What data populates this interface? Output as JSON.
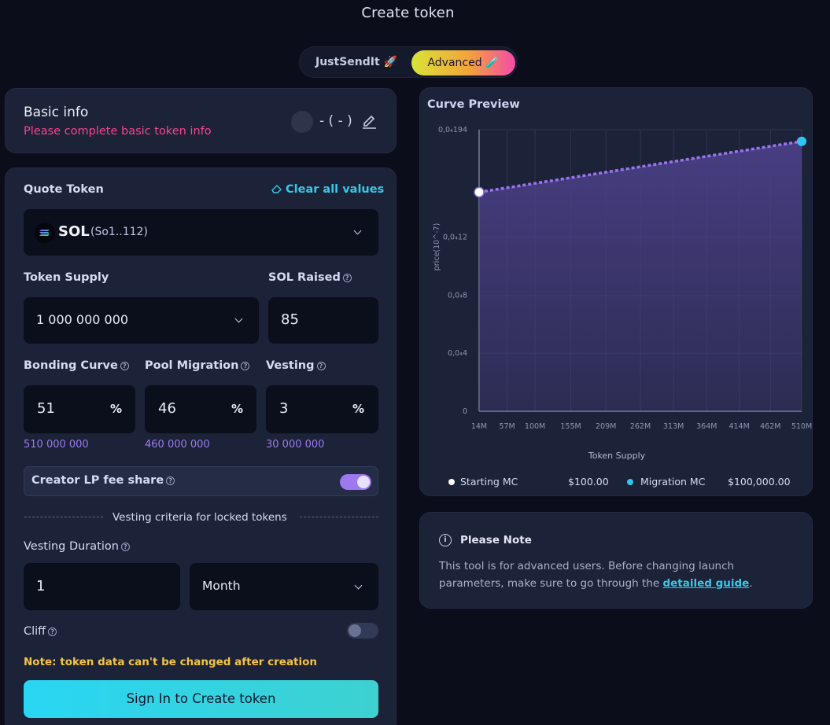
{
  "page": {
    "title": "Create token"
  },
  "mode_toggle": {
    "justsend_label": "JustSendIt 🚀",
    "advanced_label": "Advanced 🧪"
  },
  "basic_info": {
    "title": "Basic info",
    "warning": "Please complete basic token info",
    "ticker_placeholder": "- ( - )"
  },
  "form": {
    "quote_token_label": "Quote Token",
    "clear_all_label": "Clear all values",
    "quote_token": {
      "symbol": "SOL",
      "address": "(So1..112)"
    },
    "token_supply_label": "Token Supply",
    "token_supply_value": "1 000 000 000",
    "sol_raised_label": "SOL Raised",
    "sol_raised_value": "85",
    "bonding_curve_label": "Bonding Curve",
    "pool_migration_label": "Pool Migration",
    "vesting_label": "Vesting",
    "bonding_curve_value": "51",
    "pool_migration_value": "46",
    "vesting_value": "3",
    "percent_symbol": "%",
    "bonding_curve_tokens": "510 000 000",
    "pool_migration_tokens": "460 000 000",
    "vesting_tokens": "30 000 000",
    "creator_lp_label": "Creator LP fee share",
    "creator_lp_enabled": true,
    "vesting_criteria_label": "Vesting criteria for locked tokens",
    "vesting_duration_label": "Vesting Duration",
    "vesting_duration_value": "1",
    "vesting_duration_unit": "Month",
    "cliff_label": "Cliff",
    "cliff_enabled": false,
    "note": "Note: token data can't be changed after creation",
    "submit_label": "Sign In to Create token"
  },
  "curve_preview": {
    "title": "Curve Preview",
    "legend": {
      "starting_label": "Starting MC",
      "starting_value": "$100.00",
      "migration_label": "Migration MC",
      "migration_value": "$100,000.00"
    }
  },
  "chart_data": {
    "type": "area",
    "title": "Curve Preview",
    "xlabel": "Token Supply",
    "ylabel": "price(10^-7)",
    "x_ticks": [
      "14M",
      "57M",
      "100M",
      "155M",
      "209M",
      "262M",
      "313M",
      "364M",
      "414M",
      "462M",
      "510M"
    ],
    "y_ticks": [
      "0",
      "0,0₄4",
      "0,0₄8",
      "0,0₄12",
      "0,0₄194"
    ],
    "y_tick_values": [
      0,
      4,
      8,
      12,
      19.4
    ],
    "ylim": [
      0,
      19.4
    ],
    "series": [
      {
        "name": "",
        "x": [
          14,
          510
        ],
        "y": [
          15.1,
          18.6
        ],
        "style": "dotted"
      }
    ],
    "points": [
      {
        "label": "Starting MC",
        "x": 14,
        "y": 15.1,
        "color": "#ffffff"
      },
      {
        "label": "Migration MC",
        "x": 510,
        "y": 18.6,
        "color": "#2ec7f0"
      }
    ],
    "grid": true,
    "colors": {
      "line": "#9a74f0",
      "area": "#4a3f86",
      "start": "#ffffff",
      "end": "#2ec7f0"
    }
  },
  "note_card": {
    "title": "Please Note",
    "text_before_link": "This tool is for advanced users. Before changing launch parameters, make sure to go through the ",
    "link_text": "detailed guide",
    "text_after_link": "."
  },
  "colors": {
    "background": "#0b0e1a",
    "card": "#1c2237",
    "accent_cyan": "#36c9e8",
    "accent_purple": "#9d7cf2",
    "warning_pink": "#f5468f",
    "note_yellow": "#f5c542"
  }
}
